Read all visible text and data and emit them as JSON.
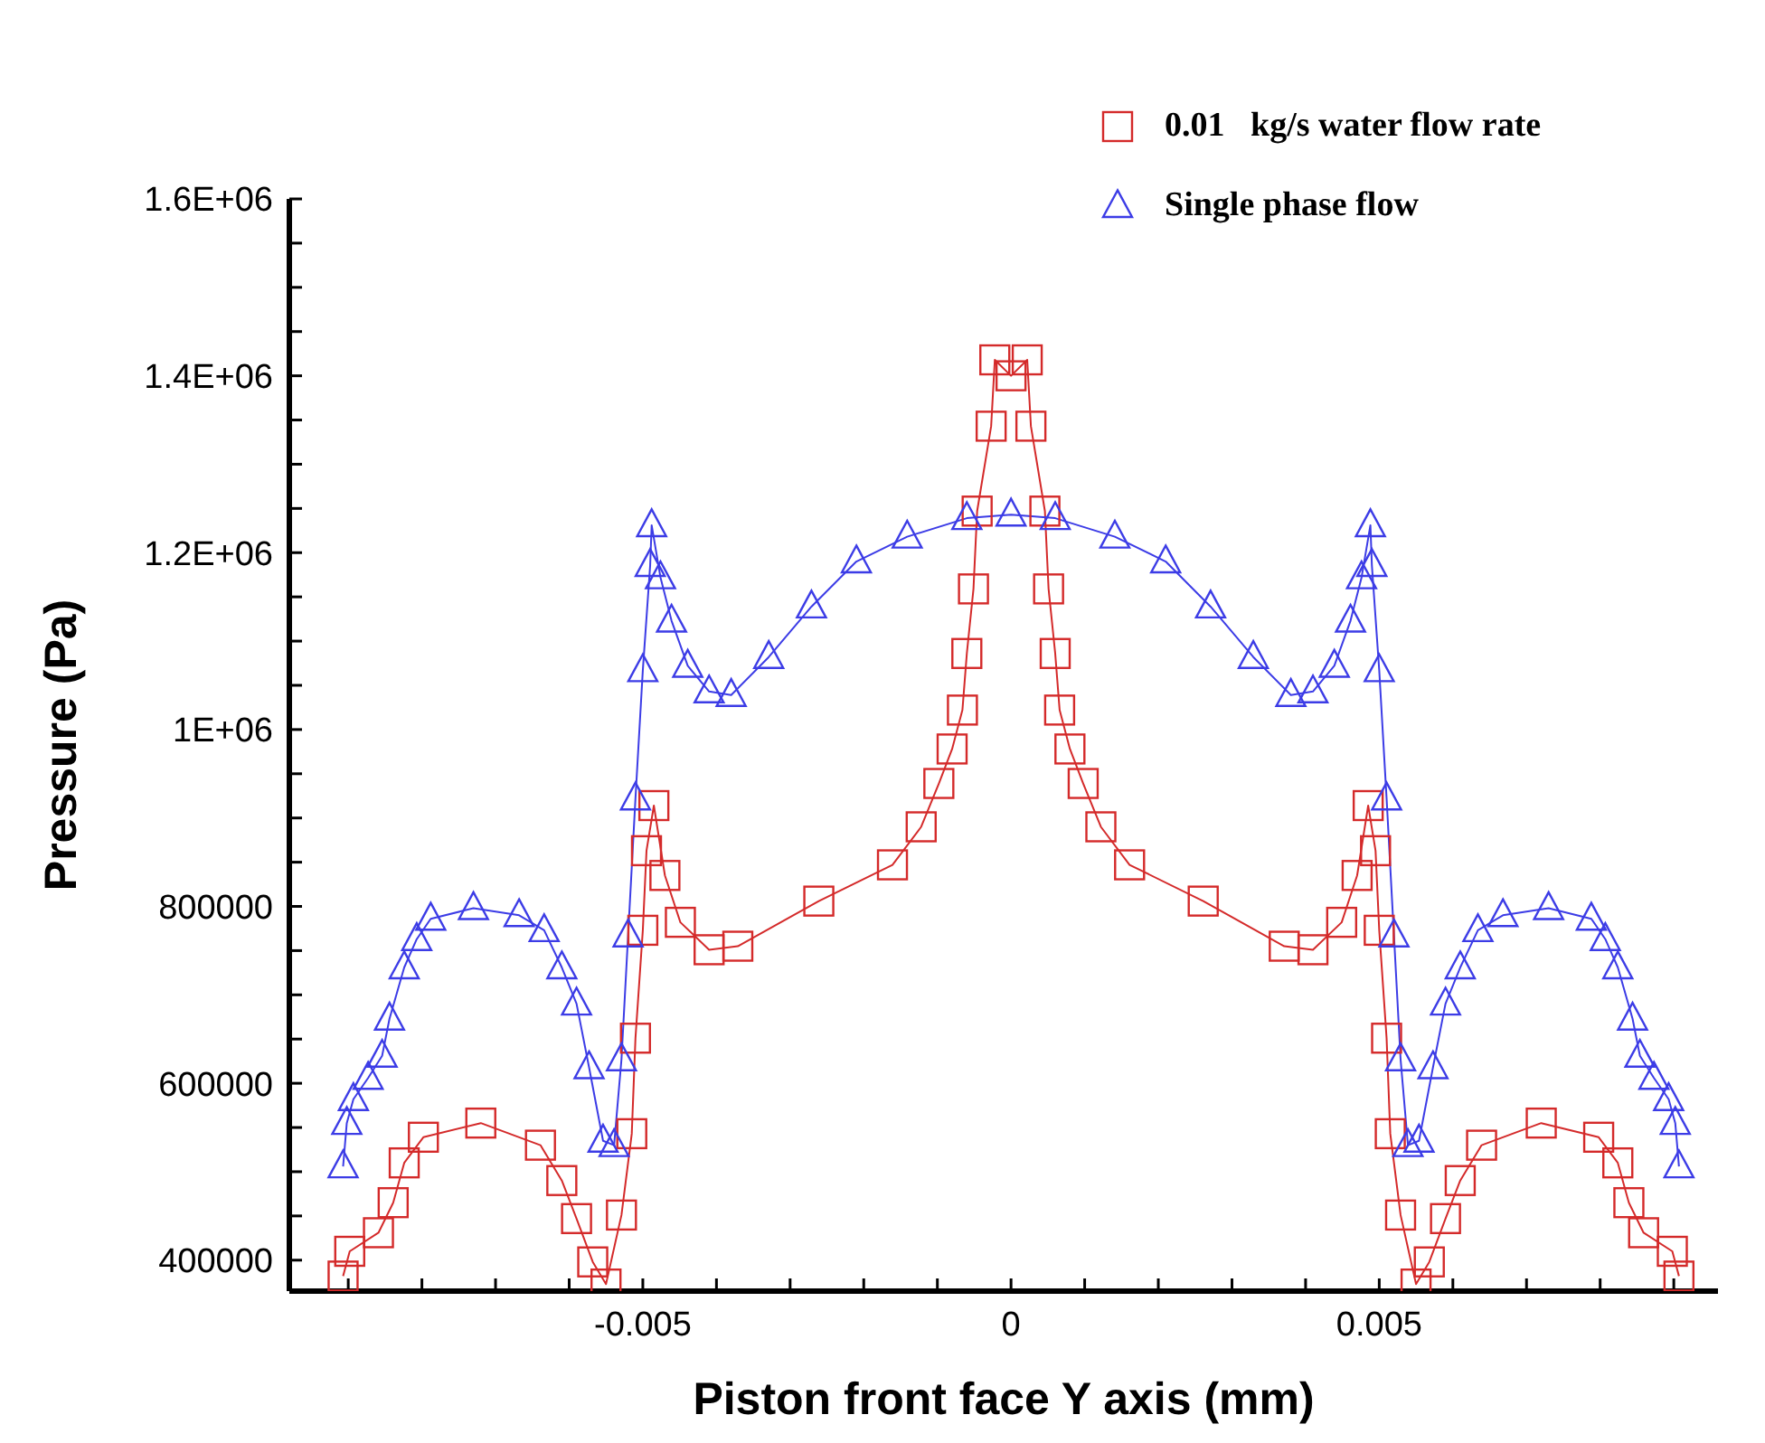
{
  "chart_data": {
    "type": "line",
    "xlabel": "Piston front face Y axis (mm)",
    "ylabel": "Pressure (Pa)",
    "xlim": [
      -0.0098,
      0.0096
    ],
    "ylim": [
      365000,
      1600000
    ],
    "xticks": [
      {
        "value": -0.009,
        "label": null
      },
      {
        "value": -0.008,
        "label": null
      },
      {
        "value": -0.007,
        "label": null
      },
      {
        "value": -0.006,
        "label": null
      },
      -0.005,
      {
        "value": -0.004,
        "label": null
      },
      {
        "value": -0.003,
        "label": null
      },
      {
        "value": -0.002,
        "label": null
      },
      {
        "value": -0.001,
        "label": null
      },
      0,
      {
        "value": 0.001,
        "label": null
      },
      {
        "value": 0.002,
        "label": null
      },
      {
        "value": 0.003,
        "label": null
      },
      {
        "value": 0.004,
        "label": null
      },
      0.005,
      {
        "value": 0.006,
        "label": null
      },
      {
        "value": 0.007,
        "label": null
      },
      {
        "value": 0.008,
        "label": null
      },
      {
        "value": 0.009,
        "label": null
      }
    ],
    "yticks": [
      400000,
      {
        "value": 450000,
        "label": null
      },
      600000,
      {
        "value": 500000,
        "label": null
      },
      {
        "value": 550000,
        "label": null
      },
      {
        "value": 650000,
        "label": null
      },
      {
        "value": 700000,
        "label": null
      },
      {
        "value": 750000,
        "label": null
      },
      800000,
      {
        "value": 850000,
        "label": null
      },
      {
        "value": 900000,
        "label": null
      },
      {
        "value": 950000,
        "label": null
      },
      {
        "value": 1000000,
        "label": "1E+06"
      },
      {
        "value": 1050000,
        "label": null
      },
      {
        "value": 1100000,
        "label": null
      },
      {
        "value": 1150000,
        "label": null
      },
      {
        "value": 1200000,
        "label": "1.2E+06"
      },
      {
        "value": 1250000,
        "label": null
      },
      {
        "value": 1300000,
        "label": null
      },
      {
        "value": 1350000,
        "label": null
      },
      {
        "value": 1400000,
        "label": "1.4E+06"
      },
      {
        "value": 1450000,
        "label": null
      },
      {
        "value": 1500000,
        "label": null
      },
      {
        "value": 1550000,
        "label": null
      },
      {
        "value": 1600000,
        "label": "1.6E+06"
      }
    ],
    "grid": false,
    "legend": "top right",
    "line_style": "solid",
    "series": [
      {
        "name": "0.01   kg/s water flow rate",
        "color": "#d42a2a",
        "marker": "square",
        "x": [
          -0.00907,
          -0.00898,
          -0.00859,
          -0.00839,
          -0.00824,
          -0.00798,
          -0.0072,
          -0.00639,
          -0.0061,
          -0.0059,
          -0.00568,
          -0.0055,
          -0.00529,
          -0.00515,
          -0.0051,
          -0.005,
          -0.00495,
          -0.00485,
          -0.0047,
          -0.00449,
          -0.0041,
          -0.00371,
          -0.00261,
          -0.00161,
          -0.00122,
          -0.00098,
          -0.0008,
          -0.00066,
          -0.0006,
          -0.00051,
          -0.00046,
          -0.00027,
          -0.00022,
          0,
          0.00022,
          0.00027,
          0.00046,
          0.00051,
          0.0006,
          0.00066,
          0.0008,
          0.00098,
          0.00122,
          0.00161,
          0.00261,
          0.00371,
          0.0041,
          0.00449,
          0.0047,
          0.00485,
          0.00495,
          0.005,
          0.0051,
          0.00515,
          0.00529,
          0.0055,
          0.00568,
          0.0059,
          0.0061,
          0.00639,
          0.0072,
          0.00798,
          0.00824,
          0.00839,
          0.00859,
          0.00898,
          0.00907
        ],
        "values": [
          382000,
          410000,
          431000,
          465000,
          510000,
          539000,
          555000,
          530000,
          490000,
          447000,
          398000,
          373000,
          451000,
          543000,
          651000,
          773000,
          863000,
          914000,
          835000,
          782000,
          751000,
          755000,
          806000,
          847000,
          890000,
          939000,
          978000,
          1022000,
          1086000,
          1159000,
          1247000,
          1343000,
          1418000,
          1400000,
          1418000,
          1343000,
          1247000,
          1159000,
          1086000,
          1022000,
          978000,
          939000,
          890000,
          847000,
          806000,
          755000,
          751000,
          782000,
          835000,
          914000,
          863000,
          773000,
          651000,
          543000,
          451000,
          373000,
          398000,
          447000,
          490000,
          530000,
          555000,
          539000,
          510000,
          465000,
          431000,
          410000,
          382000
        ]
      },
      {
        "name": "Single phase flow",
        "color": "#3c3ce6",
        "marker": "triangle",
        "x": [
          -0.00907,
          -0.00902,
          -0.00893,
          -0.00873,
          -0.00854,
          -0.00844,
          -0.00824,
          -0.00807,
          -0.00788,
          -0.0073,
          -0.00668,
          -0.00634,
          -0.0061,
          -0.0059,
          -0.00573,
          -0.00554,
          -0.00539,
          -0.00529,
          -0.0052,
          -0.0051,
          -0.005,
          -0.0049,
          -0.00488,
          -0.00476,
          -0.00461,
          -0.00439,
          -0.0041,
          -0.0038,
          -0.00329,
          -0.00271,
          -0.0021,
          -0.00141,
          -0.0006,
          0,
          0.0006,
          0.00141,
          0.0021,
          0.00271,
          0.00329,
          0.0038,
          0.0041,
          0.00439,
          0.00461,
          0.00476,
          0.00488,
          0.0049,
          0.005,
          0.0051,
          0.0052,
          0.00529,
          0.00539,
          0.00554,
          0.00573,
          0.0059,
          0.0061,
          0.00634,
          0.00668,
          0.0073,
          0.00788,
          0.00807,
          0.00824,
          0.00844,
          0.00854,
          0.00873,
          0.00893,
          0.00902,
          0.00907
        ],
        "values": [
          506000,
          555000,
          582000,
          606000,
          631000,
          673000,
          731000,
          763000,
          786000,
          798000,
          790000,
          773000,
          731000,
          690000,
          618000,
          535000,
          530000,
          627000,
          767000,
          922000,
          1067000,
          1186000,
          1231000,
          1172000,
          1123000,
          1072000,
          1043000,
          1039000,
          1082000,
          1139000,
          1190000,
          1218000,
          1239000,
          1243000,
          1239000,
          1218000,
          1190000,
          1139000,
          1082000,
          1039000,
          1043000,
          1072000,
          1123000,
          1172000,
          1231000,
          1186000,
          1067000,
          922000,
          767000,
          627000,
          530000,
          535000,
          618000,
          690000,
          731000,
          773000,
          790000,
          798000,
          786000,
          763000,
          731000,
          673000,
          631000,
          606000,
          582000,
          555000,
          506000
        ]
      }
    ]
  }
}
